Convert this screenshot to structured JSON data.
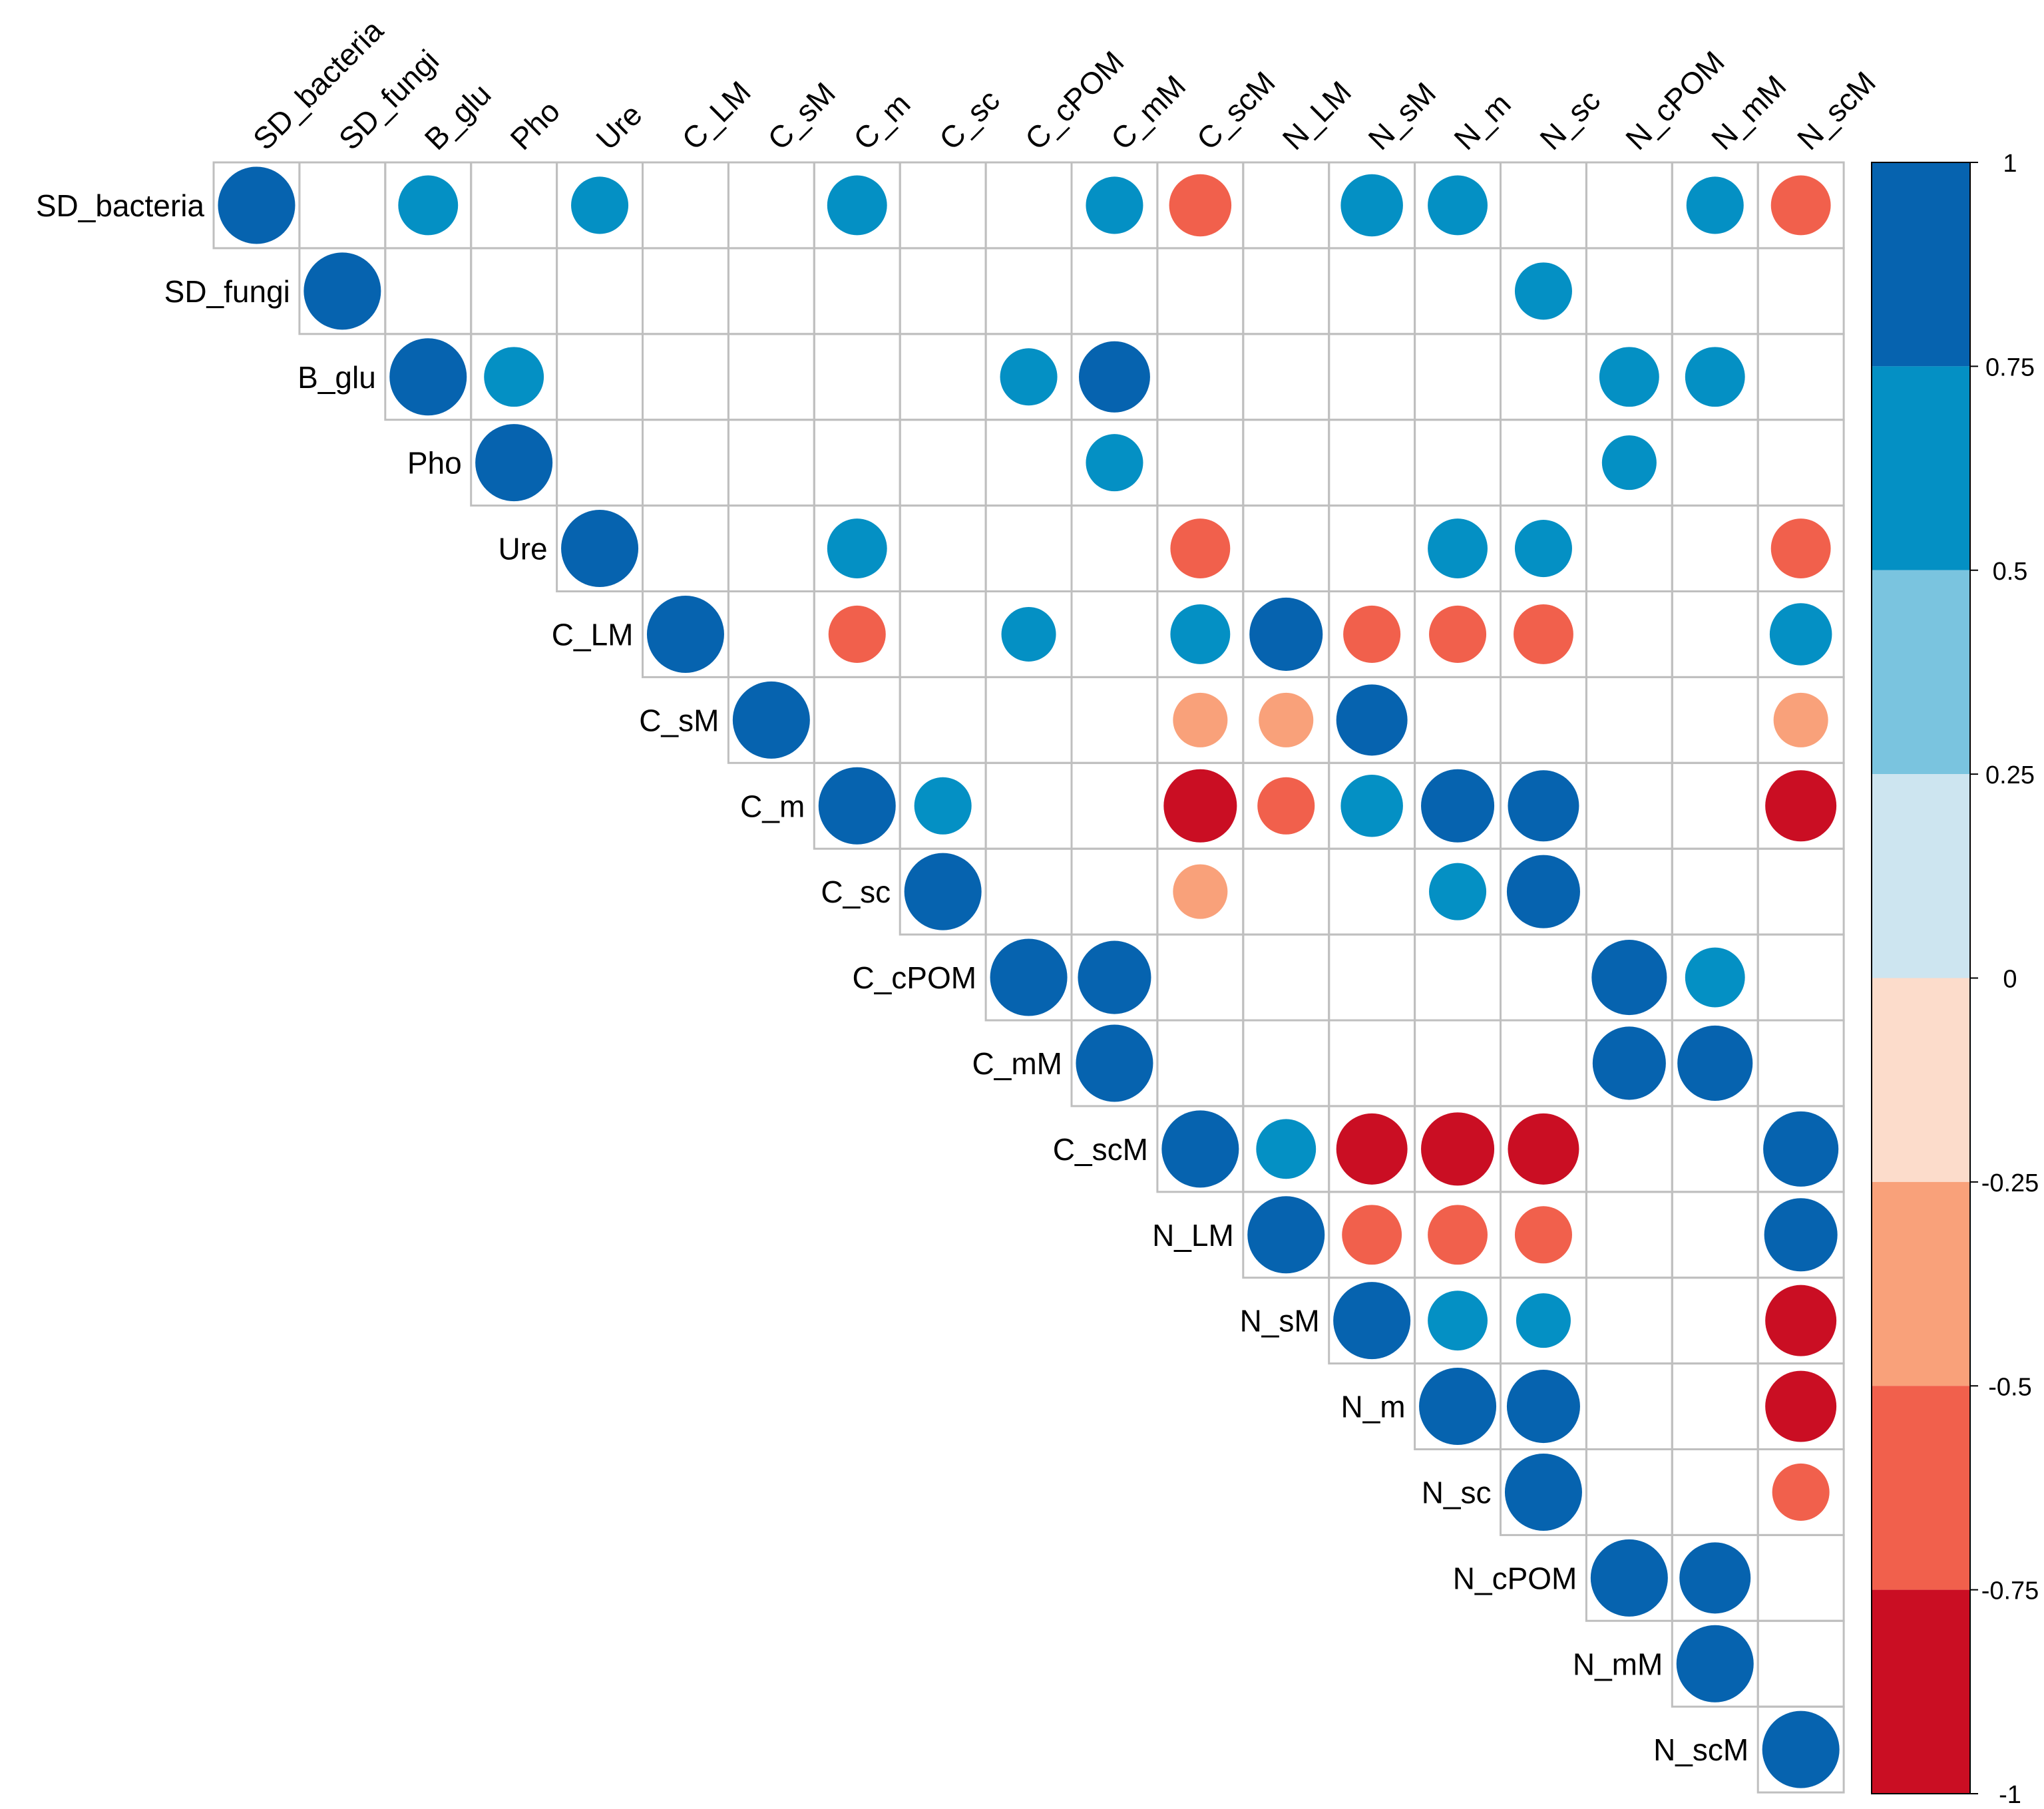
{
  "chart_data": {
    "type": "heatmap",
    "style": "upper-triangle correlation circle plot",
    "variables": [
      "SD_bacteria",
      "SD_fungi",
      "B_glu",
      "Pho",
      "Ure",
      "C_LM",
      "C_sM",
      "C_m",
      "C_sc",
      "C_cPOM",
      "C_mM",
      "C_scM",
      "N_LM",
      "N_sM",
      "N_m",
      "N_sc",
      "N_cPOM",
      "N_mM",
      "N_scM"
    ],
    "correlations": [
      {
        "row": "SD_bacteria",
        "col": "SD_bacteria",
        "value": 1.0
      },
      {
        "row": "SD_bacteria",
        "col": "B_glu",
        "value": 0.6
      },
      {
        "row": "SD_bacteria",
        "col": "Ure",
        "value": 0.55
      },
      {
        "row": "SD_bacteria",
        "col": "C_m",
        "value": 0.6
      },
      {
        "row": "SD_bacteria",
        "col": "C_mM",
        "value": 0.55
      },
      {
        "row": "SD_bacteria",
        "col": "C_scM",
        "value": -0.65
      },
      {
        "row": "SD_bacteria",
        "col": "N_sM",
        "value": 0.65
      },
      {
        "row": "SD_bacteria",
        "col": "N_m",
        "value": 0.6
      },
      {
        "row": "SD_bacteria",
        "col": "N_mM",
        "value": 0.55
      },
      {
        "row": "SD_bacteria",
        "col": "N_scM",
        "value": -0.6
      },
      {
        "row": "SD_fungi",
        "col": "SD_fungi",
        "value": 1.0
      },
      {
        "row": "SD_fungi",
        "col": "N_sc",
        "value": 0.55
      },
      {
        "row": "B_glu",
        "col": "B_glu",
        "value": 1.0
      },
      {
        "row": "B_glu",
        "col": "Pho",
        "value": 0.6
      },
      {
        "row": "B_glu",
        "col": "C_cPOM",
        "value": 0.55
      },
      {
        "row": "B_glu",
        "col": "C_mM",
        "value": 0.85
      },
      {
        "row": "B_glu",
        "col": "N_cPOM",
        "value": 0.6
      },
      {
        "row": "B_glu",
        "col": "N_mM",
        "value": 0.6
      },
      {
        "row": "Pho",
        "col": "Pho",
        "value": 1.0
      },
      {
        "row": "Pho",
        "col": "C_mM",
        "value": 0.55
      },
      {
        "row": "Pho",
        "col": "N_cPOM",
        "value": 0.5
      },
      {
        "row": "Ure",
        "col": "Ure",
        "value": 1.0
      },
      {
        "row": "Ure",
        "col": "C_m",
        "value": 0.6
      },
      {
        "row": "Ure",
        "col": "C_scM",
        "value": -0.6
      },
      {
        "row": "Ure",
        "col": "N_m",
        "value": 0.6
      },
      {
        "row": "Ure",
        "col": "N_sc",
        "value": 0.55
      },
      {
        "row": "Ure",
        "col": "N_scM",
        "value": -0.6
      },
      {
        "row": "C_LM",
        "col": "C_LM",
        "value": 1.0
      },
      {
        "row": "C_LM",
        "col": "C_m",
        "value": -0.55
      },
      {
        "row": "C_LM",
        "col": "C_cPOM",
        "value": 0.5
      },
      {
        "row": "C_LM",
        "col": "C_scM",
        "value": 0.6
      },
      {
        "row": "C_LM",
        "col": "N_LM",
        "value": 0.9
      },
      {
        "row": "C_LM",
        "col": "N_sM",
        "value": -0.55
      },
      {
        "row": "C_LM",
        "col": "N_m",
        "value": -0.55
      },
      {
        "row": "C_LM",
        "col": "N_sc",
        "value": -0.6
      },
      {
        "row": "C_LM",
        "col": "N_scM",
        "value": 0.65
      },
      {
        "row": "C_sM",
        "col": "C_sM",
        "value": 1.0
      },
      {
        "row": "C_sM",
        "col": "C_scM",
        "value": -0.5
      },
      {
        "row": "C_sM",
        "col": "N_LM",
        "value": -0.5
      },
      {
        "row": "C_sM",
        "col": "N_sM",
        "value": 0.85
      },
      {
        "row": "C_sM",
        "col": "N_scM",
        "value": -0.5
      },
      {
        "row": "C_m",
        "col": "C_m",
        "value": 1.0
      },
      {
        "row": "C_m",
        "col": "C_sc",
        "value": 0.55
      },
      {
        "row": "C_m",
        "col": "C_scM",
        "value": -0.9
      },
      {
        "row": "C_m",
        "col": "N_LM",
        "value": -0.55
      },
      {
        "row": "C_m",
        "col": "N_sM",
        "value": 0.65
      },
      {
        "row": "C_m",
        "col": "N_m",
        "value": 0.9
      },
      {
        "row": "C_m",
        "col": "N_sc",
        "value": 0.85
      },
      {
        "row": "C_m",
        "col": "N_scM",
        "value": -0.85
      },
      {
        "row": "C_sc",
        "col": "C_sc",
        "value": 1.0
      },
      {
        "row": "C_sc",
        "col": "C_scM",
        "value": -0.5
      },
      {
        "row": "C_sc",
        "col": "N_m",
        "value": 0.55
      },
      {
        "row": "C_sc",
        "col": "N_sc",
        "value": 0.9
      },
      {
        "row": "C_cPOM",
        "col": "C_cPOM",
        "value": 1.0
      },
      {
        "row": "C_cPOM",
        "col": "C_mM",
        "value": 0.9
      },
      {
        "row": "C_cPOM",
        "col": "N_cPOM",
        "value": 0.95
      },
      {
        "row": "C_cPOM",
        "col": "N_mM",
        "value": 0.6
      },
      {
        "row": "C_mM",
        "col": "C_mM",
        "value": 1.0
      },
      {
        "row": "C_mM",
        "col": "N_cPOM",
        "value": 0.9
      },
      {
        "row": "C_mM",
        "col": "N_mM",
        "value": 0.95
      },
      {
        "row": "C_scM",
        "col": "C_scM",
        "value": 1.0
      },
      {
        "row": "C_scM",
        "col": "N_LM",
        "value": 0.6
      },
      {
        "row": "C_scM",
        "col": "N_sM",
        "value": -0.85
      },
      {
        "row": "C_scM",
        "col": "N_m",
        "value": -0.9
      },
      {
        "row": "C_scM",
        "col": "N_sc",
        "value": -0.85
      },
      {
        "row": "C_scM",
        "col": "N_scM",
        "value": 0.95
      },
      {
        "row": "N_LM",
        "col": "N_LM",
        "value": 1.0
      },
      {
        "row": "N_LM",
        "col": "N_sM",
        "value": -0.6
      },
      {
        "row": "N_LM",
        "col": "N_m",
        "value": -0.6
      },
      {
        "row": "N_LM",
        "col": "N_sc",
        "value": -0.55
      },
      {
        "row": "N_LM",
        "col": "N_scM",
        "value": 0.9
      },
      {
        "row": "N_sM",
        "col": "N_sM",
        "value": 1.0
      },
      {
        "row": "N_sM",
        "col": "N_m",
        "value": 0.6
      },
      {
        "row": "N_sM",
        "col": "N_sc",
        "value": 0.5
      },
      {
        "row": "N_sM",
        "col": "N_scM",
        "value": -0.85
      },
      {
        "row": "N_m",
        "col": "N_m",
        "value": 1.0
      },
      {
        "row": "N_m",
        "col": "N_sc",
        "value": 0.9
      },
      {
        "row": "N_m",
        "col": "N_scM",
        "value": -0.85
      },
      {
        "row": "N_sc",
        "col": "N_sc",
        "value": 1.0
      },
      {
        "row": "N_sc",
        "col": "N_scM",
        "value": -0.55
      },
      {
        "row": "N_cPOM",
        "col": "N_cPOM",
        "value": 1.0
      },
      {
        "row": "N_cPOM",
        "col": "N_mM",
        "value": 0.85
      },
      {
        "row": "N_mM",
        "col": "N_mM",
        "value": 1.0
      },
      {
        "row": "N_scM",
        "col": "N_scM",
        "value": 1.0
      }
    ],
    "colorbar": {
      "range": [
        -1,
        1
      ],
      "tick_labels": [
        "1",
        "0.75",
        "0.5",
        "0.25",
        "0",
        "-0.25",
        "-0.5",
        "-0.75",
        "-1"
      ],
      "bins": [
        {
          "from": 0.75,
          "to": 1.0,
          "color": "#0663AF"
        },
        {
          "from": 0.5,
          "to": 0.75,
          "color": "#0490C4"
        },
        {
          "from": 0.25,
          "to": 0.5,
          "color": "#7AC4DF"
        },
        {
          "from": 0.0,
          "to": 0.25,
          "color": "#CDE5F0"
        },
        {
          "from": -0.25,
          "to": 0.0,
          "color": "#FCDCCB"
        },
        {
          "from": -0.5,
          "to": -0.25,
          "color": "#F9A17A"
        },
        {
          "from": -0.75,
          "to": -0.5,
          "color": "#F1604C"
        },
        {
          "from": -1.0,
          "to": -0.75,
          "color": "#CA0E23"
        }
      ]
    },
    "grid_color": "#BFBFBF"
  }
}
